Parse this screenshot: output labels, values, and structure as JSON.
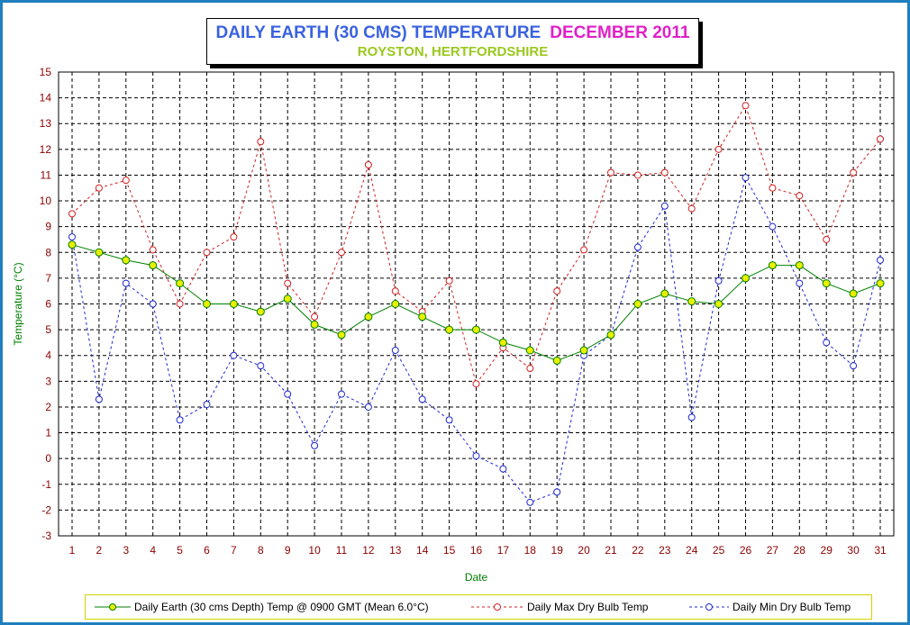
{
  "title": {
    "main": "DAILY EARTH (30 CMS) TEMPERATURE",
    "month": "DECEMBER 2011",
    "subtitle": "ROYSTON, HERTFORDSHIRE"
  },
  "colors": {
    "earth": "#008000",
    "earth_marker": "#e8f000",
    "max": "#d22020",
    "min": "#1e28d2",
    "axis_label": "#008000",
    "tick_label_x": "#8b0000",
    "tick_label_y": "#8b0000",
    "frame": "#1f7fbf"
  },
  "legend": {
    "earth": "Daily Earth (30 cms Depth) Temp @ 0900 GMT (Mean 6.0°C)",
    "max": "Daily Max Dry Bulb Temp",
    "min": "Daily Min Dry Bulb Temp"
  },
  "chart_data": {
    "type": "line",
    "title": "DAILY EARTH (30 CMS) TEMPERATURE DECEMBER 2011",
    "subtitle": "ROYSTON, HERTFORDSHIRE",
    "xlabel": "Date",
    "ylabel": "Temperature (°C)",
    "ylim": [
      -3,
      15
    ],
    "yticks": [
      -3,
      -2,
      -1,
      0,
      1,
      2,
      3,
      4,
      5,
      6,
      7,
      8,
      9,
      10,
      11,
      12,
      13,
      14,
      15
    ],
    "grid": true,
    "legend_position": "bottom",
    "x": [
      1,
      2,
      3,
      4,
      5,
      6,
      7,
      8,
      9,
      10,
      11,
      12,
      13,
      14,
      15,
      16,
      17,
      18,
      19,
      20,
      21,
      22,
      23,
      24,
      25,
      26,
      27,
      28,
      29,
      30,
      31
    ],
    "series": [
      {
        "name": "Daily Earth (30 cms Depth) Temp @ 0900 GMT (Mean 6.0°C)",
        "key": "earth",
        "style": "solid",
        "values": [
          8.3,
          8.0,
          7.7,
          7.5,
          6.8,
          6.0,
          6.0,
          5.7,
          6.2,
          5.2,
          4.8,
          5.5,
          6.0,
          5.5,
          5.0,
          5.0,
          4.5,
          4.2,
          3.8,
          4.2,
          4.8,
          6.0,
          6.4,
          6.1,
          6.0,
          7.0,
          7.5,
          7.5,
          6.8,
          6.4,
          6.8
        ]
      },
      {
        "name": "Daily Max Dry Bulb Temp",
        "key": "max",
        "style": "dashed",
        "values": [
          9.5,
          10.5,
          10.8,
          8.1,
          6.0,
          8.0,
          8.6,
          12.3,
          6.8,
          5.5,
          8.0,
          11.4,
          6.5,
          5.7,
          6.9,
          2.9,
          4.3,
          3.5,
          6.5,
          8.1,
          11.1,
          11.0,
          11.1,
          9.7,
          12.0,
          13.7,
          10.5,
          10.2,
          8.5,
          11.1,
          12.4
        ]
      },
      {
        "name": "Daily Min Dry Bulb Temp",
        "key": "min",
        "style": "dashed",
        "values": [
          8.6,
          2.3,
          6.8,
          6.0,
          1.5,
          2.1,
          4.0,
          3.6,
          2.5,
          0.5,
          2.5,
          2.0,
          4.2,
          2.3,
          1.5,
          0.1,
          -0.4,
          -1.7,
          -1.3,
          4.0,
          4.8,
          8.2,
          9.8,
          1.6,
          6.9,
          10.9,
          9.0,
          6.8,
          4.5,
          3.6,
          7.7
        ]
      }
    ]
  }
}
